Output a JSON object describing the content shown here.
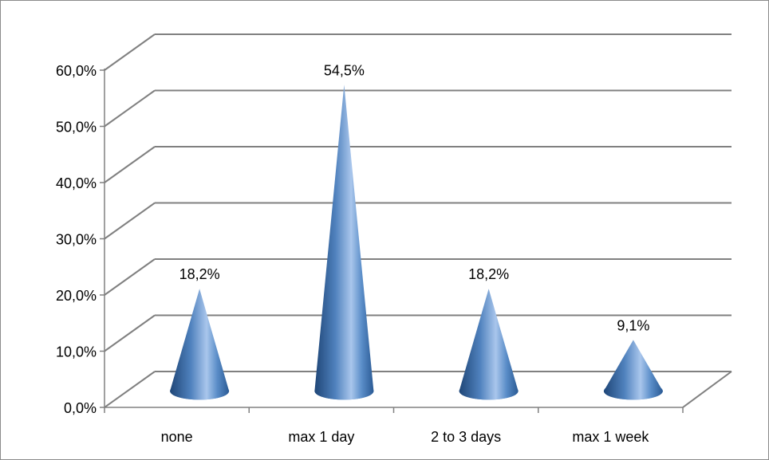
{
  "chart_data": {
    "type": "bar",
    "style": "3d-cone",
    "categories": [
      "none",
      "max 1 day",
      "2 to 3 days",
      "max 1 week"
    ],
    "values": [
      18.2,
      54.5,
      18.2,
      9.1
    ],
    "data_labels": [
      "18,2%",
      "54,5%",
      "18,2%",
      "9,1%"
    ],
    "y_ticks": [
      "0,0%",
      "10,0%",
      "20,0%",
      "30,0%",
      "40,0%",
      "50,0%",
      "60,0%"
    ],
    "ylim": [
      0,
      60
    ],
    "grid": true,
    "legend": "none",
    "title": "",
    "xlabel": "",
    "ylabel": "",
    "colors": {
      "cone": "#4f81bd",
      "cone_dark": "#2c5a8f",
      "cone_light": "#a9c6ec",
      "grid": "#808080"
    }
  }
}
